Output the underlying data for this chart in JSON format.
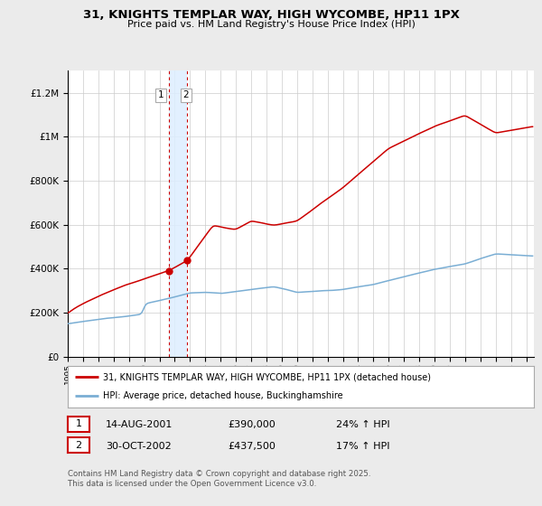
{
  "title": "31, KNIGHTS TEMPLAR WAY, HIGH WYCOMBE, HP11 1PX",
  "subtitle": "Price paid vs. HM Land Registry's House Price Index (HPI)",
  "legend_line1": "31, KNIGHTS TEMPLAR WAY, HIGH WYCOMBE, HP11 1PX (detached house)",
  "legend_line2": "HPI: Average price, detached house, Buckinghamshire",
  "transaction1_date": "14-AUG-2001",
  "transaction1_price": "£390,000",
  "transaction1_hpi": "24% ↑ HPI",
  "transaction2_date": "30-OCT-2002",
  "transaction2_price": "£437,500",
  "transaction2_hpi": "17% ↑ HPI",
  "copyright": "Contains HM Land Registry data © Crown copyright and database right 2025.\nThis data is licensed under the Open Government Licence v3.0.",
  "red_color": "#cc0000",
  "blue_color": "#7aaed4",
  "shade_color": "#ddeeff",
  "background_color": "#ebebeb",
  "plot_background": "#ffffff",
  "label_box_color": "#cc0000",
  "ylim_min": 0,
  "ylim_max": 1300000
}
